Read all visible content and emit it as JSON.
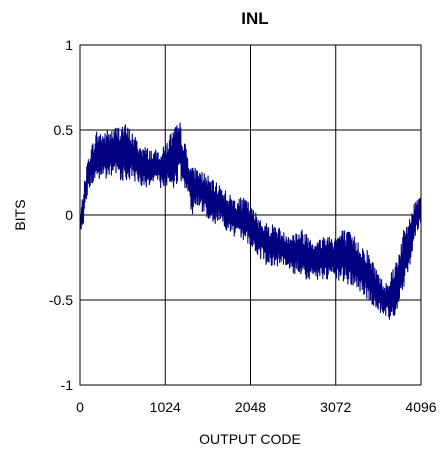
{
  "chart_data": {
    "type": "line",
    "title": "INL",
    "xlabel": "OUTPUT CODE",
    "ylabel": "BITS",
    "xlim": [
      0,
      4096
    ],
    "ylim": [
      -1,
      1
    ],
    "x_ticks": [
      0,
      1024,
      2048,
      3072,
      4096
    ],
    "x_tick_labels": [
      "0",
      "1024",
      "2048",
      "3072",
      "4096"
    ],
    "y_ticks": [
      1,
      0.5,
      0,
      -0.5,
      -1
    ],
    "y_tick_labels": [
      "1",
      "0.5",
      "0",
      "-0.5",
      "-1"
    ],
    "grid": true,
    "legend": "none",
    "series": [
      {
        "color": "#000080",
        "envelope": {
          "x": [
            0,
            40,
            100,
            200,
            300,
            420,
            520,
            620,
            720,
            800,
            900,
            1000,
            1100,
            1200,
            1300,
            1350,
            1400,
            1500,
            1600,
            1700,
            1800,
            1900,
            2000,
            2048,
            2150,
            2250,
            2350,
            2450,
            2550,
            2650,
            2750,
            2850,
            2950,
            3050,
            3150,
            3250,
            3350,
            3450,
            3550,
            3650,
            3720,
            3800,
            3880,
            3960,
            4040,
            4096
          ],
          "upper": [
            -0.02,
            0.15,
            0.35,
            0.5,
            0.5,
            0.52,
            0.55,
            0.5,
            0.42,
            0.4,
            0.38,
            0.4,
            0.5,
            0.55,
            0.35,
            0.28,
            0.28,
            0.25,
            0.2,
            0.18,
            0.12,
            0.1,
            0.1,
            0.05,
            0.0,
            -0.05,
            -0.05,
            -0.1,
            -0.1,
            -0.08,
            -0.1,
            -0.15,
            -0.1,
            -0.12,
            -0.08,
            -0.1,
            -0.15,
            -0.2,
            -0.3,
            -0.4,
            -0.35,
            -0.25,
            -0.1,
            0.0,
            0.1,
            0.15
          ],
          "lower": [
            -0.1,
            -0.05,
            0.15,
            0.2,
            0.2,
            0.22,
            0.2,
            0.2,
            0.18,
            0.15,
            0.18,
            0.15,
            0.15,
            0.2,
            0.1,
            0.0,
            0.05,
            0.0,
            -0.05,
            -0.05,
            -0.12,
            -0.15,
            -0.15,
            -0.2,
            -0.25,
            -0.3,
            -0.3,
            -0.3,
            -0.35,
            -0.35,
            -0.4,
            -0.38,
            -0.4,
            -0.38,
            -0.4,
            -0.42,
            -0.45,
            -0.5,
            -0.55,
            -0.6,
            -0.62,
            -0.58,
            -0.45,
            -0.3,
            -0.1,
            -0.05
          ]
        }
      }
    ]
  }
}
